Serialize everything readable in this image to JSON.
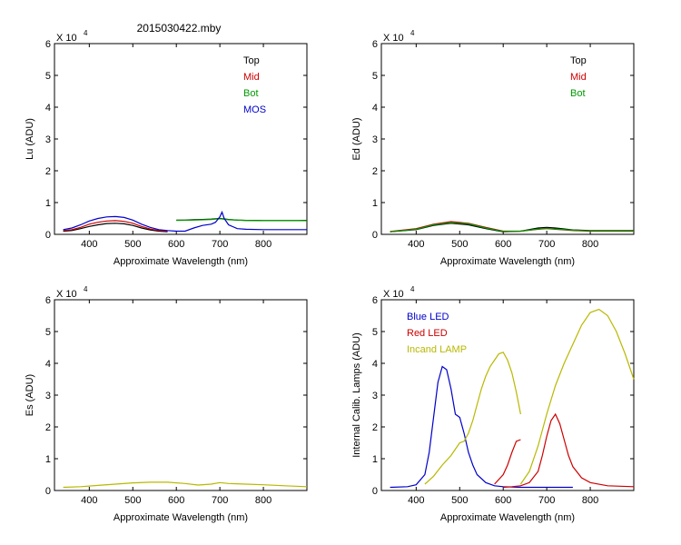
{
  "title": "2015030422.mby",
  "chart_data": [
    {
      "id": "lu",
      "type": "line",
      "ylabel": "Lu (ADU)",
      "xlabel": "Approximate Wavelength (nm)",
      "exponent": {
        "base": "X 10",
        "power": "4"
      },
      "xlim": [
        320,
        900
      ],
      "ylim": [
        0,
        6
      ],
      "xticks": [
        400,
        500,
        600,
        700,
        800
      ],
      "yticks": [
        0,
        1,
        2,
        3,
        4,
        5,
        6
      ],
      "legend": {
        "position": "top-right",
        "entries": [
          {
            "label": "Top",
            "color": "#000000"
          },
          {
            "label": "Mid",
            "color": "#cc0000"
          },
          {
            "label": "Bot",
            "color": "#009900"
          },
          {
            "label": "MOS",
            "color": "#0000cc"
          }
        ]
      },
      "series": [
        {
          "name": "Top",
          "color": "#000000",
          "x": [
            340,
            360,
            380,
            400,
            420,
            440,
            460,
            480,
            500,
            520,
            540,
            560,
            580
          ],
          "y": [
            0.1,
            0.12,
            0.18,
            0.25,
            0.3,
            0.34,
            0.35,
            0.33,
            0.28,
            0.2,
            0.14,
            0.1,
            0.08
          ]
        },
        {
          "name": "Top",
          "color": "#000000",
          "x": [
            600,
            620,
            640,
            660,
            680,
            700,
            720,
            740,
            760,
            780,
            800,
            820,
            840,
            860,
            880,
            900
          ],
          "y": [
            0.45,
            0.45,
            0.46,
            0.47,
            0.48,
            0.5,
            0.47,
            0.45,
            0.44,
            0.44,
            0.43,
            0.43,
            0.43,
            0.43,
            0.43,
            0.44
          ]
        },
        {
          "name": "Mid",
          "color": "#cc0000",
          "x": [
            340,
            360,
            380,
            400,
            420,
            440,
            460,
            480,
            500,
            520,
            540,
            560,
            580
          ],
          "y": [
            0.12,
            0.15,
            0.22,
            0.32,
            0.38,
            0.42,
            0.43,
            0.41,
            0.35,
            0.25,
            0.17,
            0.12,
            0.1
          ]
        },
        {
          "name": "Bot",
          "color": "#009900",
          "x": [
            600,
            640,
            680,
            700,
            720,
            760,
            800,
            840,
            900
          ],
          "y": [
            0.44,
            0.45,
            0.47,
            0.49,
            0.46,
            0.44,
            0.43,
            0.43,
            0.43
          ]
        },
        {
          "name": "MOS",
          "color": "#0000cc",
          "x": [
            340,
            360,
            380,
            400,
            420,
            440,
            460,
            480,
            500,
            520,
            540,
            560,
            580,
            600,
            620,
            640,
            660,
            680,
            690,
            700,
            705,
            710,
            720,
            740,
            760,
            800,
            850,
            900
          ],
          "y": [
            0.15,
            0.2,
            0.3,
            0.42,
            0.5,
            0.55,
            0.56,
            0.53,
            0.45,
            0.32,
            0.22,
            0.15,
            0.12,
            0.1,
            0.1,
            0.2,
            0.28,
            0.32,
            0.38,
            0.55,
            0.7,
            0.5,
            0.3,
            0.18,
            0.16,
            0.15,
            0.15,
            0.15
          ]
        }
      ]
    },
    {
      "id": "ed",
      "type": "line",
      "ylabel": "Ed  (ADU)",
      "xlabel": "Approximate Wavelength (nm)",
      "exponent": {
        "base": "X 10",
        "power": "4"
      },
      "xlim": [
        320,
        900
      ],
      "ylim": [
        0,
        6
      ],
      "xticks": [
        400,
        500,
        600,
        700,
        800
      ],
      "yticks": [
        0,
        1,
        2,
        3,
        4,
        5,
        6
      ],
      "legend": {
        "position": "top-right",
        "entries": [
          {
            "label": "Top",
            "color": "#000000"
          },
          {
            "label": "Mid",
            "color": "#cc0000"
          },
          {
            "label": "Bot",
            "color": "#009900"
          }
        ]
      },
      "series": [
        {
          "name": "Top",
          "color": "#000000",
          "x": [
            340,
            400,
            440,
            480,
            520,
            560,
            600,
            640,
            680,
            700,
            720,
            760,
            800,
            850,
            900
          ],
          "y": [
            0.08,
            0.15,
            0.28,
            0.35,
            0.3,
            0.18,
            0.08,
            0.1,
            0.2,
            0.22,
            0.2,
            0.14,
            0.12,
            0.12,
            0.12
          ]
        },
        {
          "name": "Mid",
          "color": "#cc0000",
          "x": [
            340,
            400,
            440,
            480,
            520,
            560,
            600,
            640,
            680,
            700,
            720,
            760,
            800,
            850,
            900
          ],
          "y": [
            0.09,
            0.18,
            0.32,
            0.4,
            0.35,
            0.22,
            0.1,
            0.1,
            0.16,
            0.18,
            0.16,
            0.12,
            0.1,
            0.1,
            0.1
          ]
        },
        {
          "name": "Bot",
          "color": "#009900",
          "x": [
            340,
            400,
            440,
            480,
            520,
            560,
            600,
            640,
            680,
            700,
            720,
            760,
            800,
            850,
            900
          ],
          "y": [
            0.08,
            0.16,
            0.3,
            0.37,
            0.33,
            0.2,
            0.09,
            0.1,
            0.17,
            0.19,
            0.17,
            0.13,
            0.11,
            0.11,
            0.11
          ]
        }
      ]
    },
    {
      "id": "es",
      "type": "line",
      "ylabel": "Es  (ADU)",
      "xlabel": "Approximate Wavelength (nm)",
      "exponent": {
        "base": "X 10",
        "power": "4"
      },
      "xlim": [
        320,
        900
      ],
      "ylim": [
        0,
        6
      ],
      "xticks": [
        400,
        500,
        600,
        700,
        800
      ],
      "yticks": [
        0,
        1,
        2,
        3,
        4,
        5,
        6
      ],
      "legend": {
        "position": "none",
        "entries": []
      },
      "series": [
        {
          "name": "Es",
          "color": "#b8b800",
          "x": [
            340,
            380,
            420,
            460,
            500,
            540,
            580,
            620,
            650,
            680,
            700,
            720,
            760,
            800,
            850,
            900
          ],
          "y": [
            0.1,
            0.12,
            0.16,
            0.2,
            0.24,
            0.26,
            0.26,
            0.22,
            0.17,
            0.2,
            0.25,
            0.22,
            0.2,
            0.18,
            0.15,
            0.12
          ]
        }
      ]
    },
    {
      "id": "lamps",
      "type": "line",
      "ylabel": "Internal Calib. Lamps (ADU)",
      "xlabel": "Approximate Wavelength (nm)",
      "exponent": {
        "base": "X 10",
        "power": "4"
      },
      "xlim": [
        320,
        900
      ],
      "ylim": [
        0,
        6
      ],
      "xticks": [
        400,
        500,
        600,
        700,
        800
      ],
      "yticks": [
        0,
        1,
        2,
        3,
        4,
        5,
        6
      ],
      "legend": {
        "position": "top-left",
        "entries": [
          {
            "label": "Blue LED",
            "color": "#0000cc"
          },
          {
            "label": "Red LED",
            "color": "#cc0000"
          },
          {
            "label": "Incand LAMP",
            "color": "#b8b800"
          }
        ]
      },
      "series": [
        {
          "name": "Blue LED",
          "color": "#0000cc",
          "x": [
            340,
            380,
            400,
            420,
            430,
            440,
            450,
            460,
            470,
            480,
            490,
            500,
            510,
            520,
            530,
            540,
            560,
            580,
            600,
            640,
            700,
            760
          ],
          "y": [
            0.1,
            0.12,
            0.18,
            0.5,
            1.2,
            2.3,
            3.4,
            3.9,
            3.8,
            3.2,
            2.4,
            2.3,
            1.8,
            1.2,
            0.8,
            0.5,
            0.25,
            0.15,
            0.12,
            0.1,
            0.1,
            0.1
          ]
        },
        {
          "name": "Red LED",
          "color": "#cc0000",
          "x": [
            600,
            620,
            640,
            660,
            680,
            690,
            700,
            710,
            720,
            730,
            740,
            750,
            760,
            780,
            800,
            840,
            900
          ],
          "y": [
            0.1,
            0.12,
            0.15,
            0.25,
            0.6,
            1.1,
            1.7,
            2.2,
            2.4,
            2.1,
            1.6,
            1.1,
            0.75,
            0.4,
            0.25,
            0.15,
            0.12
          ]
        },
        {
          "name": "Red LED",
          "color": "#cc0000",
          "x": [
            580,
            600,
            610,
            620,
            630,
            640
          ],
          "y": [
            0.2,
            0.5,
            0.8,
            1.2,
            1.55,
            1.6
          ]
        },
        {
          "name": "Incand LAMP",
          "color": "#b8b800",
          "x": [
            420,
            440,
            460,
            480,
            490,
            500,
            510,
            520,
            530,
            540,
            550,
            560,
            570,
            580,
            590,
            600,
            610,
            620,
            630,
            640
          ],
          "y": [
            0.2,
            0.45,
            0.8,
            1.1,
            1.3,
            1.5,
            1.55,
            1.8,
            2.2,
            2.7,
            3.2,
            3.6,
            3.9,
            4.1,
            4.3,
            4.35,
            4.1,
            3.7,
            3.1,
            2.4
          ]
        },
        {
          "name": "Incand LAMP",
          "color": "#b8b800",
          "x": [
            640,
            660,
            680,
            700,
            720,
            740,
            760,
            780,
            800,
            820,
            840,
            860,
            880,
            900
          ],
          "y": [
            0.2,
            0.6,
            1.4,
            2.4,
            3.3,
            4.0,
            4.6,
            5.2,
            5.6,
            5.7,
            5.5,
            5.0,
            4.3,
            3.5
          ]
        }
      ]
    }
  ]
}
